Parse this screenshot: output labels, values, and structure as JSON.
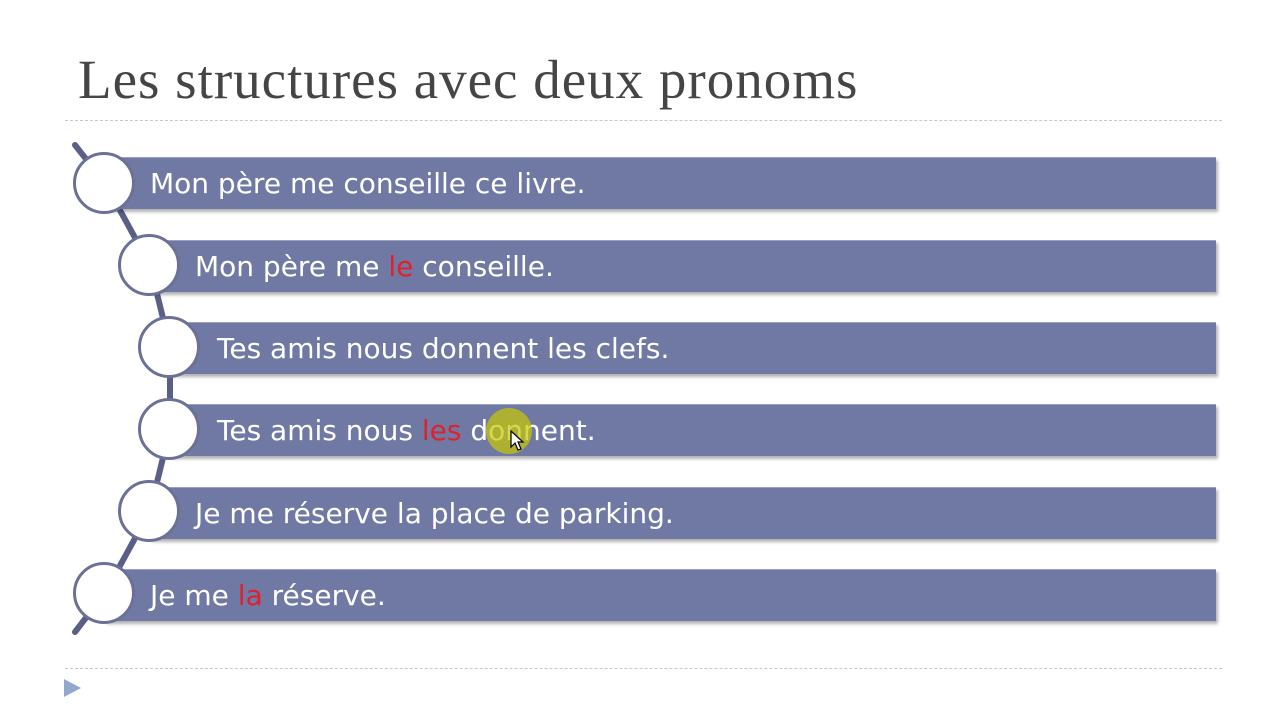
{
  "slide": {
    "title": "Les structures avec deux pronoms",
    "accent_color": "#7079a3",
    "highlight_color": "#e0202a",
    "rows": [
      {
        "pre": "Mon père me conseille ce livre.",
        "key": "",
        "post": ""
      },
      {
        "pre": "Mon père me ",
        "key": "le",
        "post": " conseille."
      },
      {
        "pre": "Tes amis nous donnent les clefs.",
        "key": "",
        "post": ""
      },
      {
        "pre": "Tes amis nous ",
        "key": "les",
        "post": " donnent."
      },
      {
        "pre": "Je me réserve la place de parking.",
        "key": "",
        "post": ""
      },
      {
        "pre": "Je me ",
        "key": "la",
        "post": " réserve."
      }
    ],
    "bullet_icon": "triangle-right-icon"
  }
}
